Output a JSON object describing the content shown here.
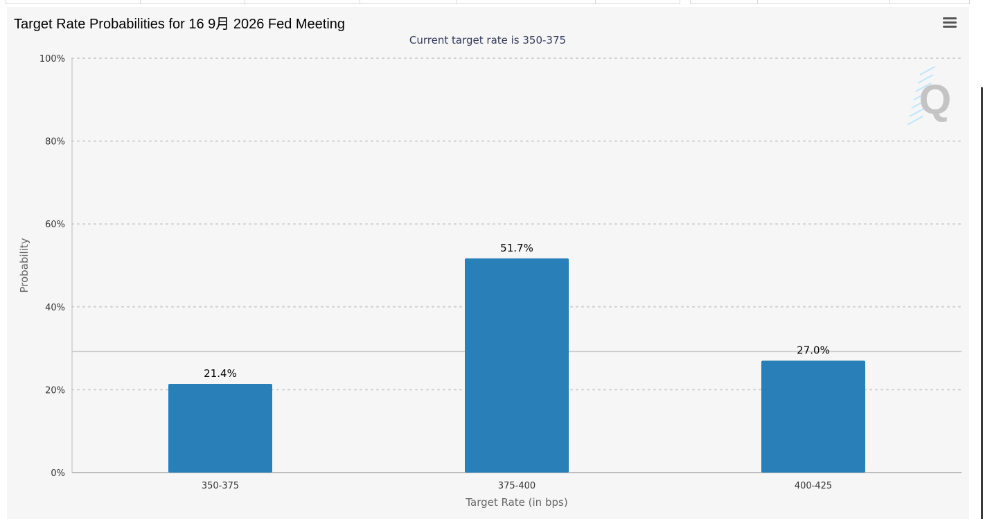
{
  "chart_data": {
    "type": "bar",
    "title": "Target Rate Probabilities for 16 9月 2026 Fed Meeting",
    "subtitle": "Current target rate is 350-375",
    "xlabel": "Target Rate (in bps)",
    "ylabel": "Probability",
    "categories": [
      "350-375",
      "375-400",
      "400-425"
    ],
    "values": [
      21.4,
      51.7,
      27.0
    ],
    "data_labels": [
      "21.4%",
      "51.7%",
      "27.0%"
    ],
    "ylim": [
      0,
      100
    ],
    "yticks": [
      0,
      20,
      40,
      60,
      80,
      100
    ],
    "ytick_labels": [
      "0%",
      "20%",
      "40%",
      "60%",
      "80%",
      "100%"
    ],
    "reference_line": 29.2,
    "grid": "horizontal dotted",
    "legend": "none",
    "bar_color": "#2980b9"
  },
  "toolbar": {
    "menu_icon": "hamburger-menu-icon"
  },
  "watermark": {
    "logo_text": "Q",
    "icon": "quikstrike-logo-icon"
  }
}
